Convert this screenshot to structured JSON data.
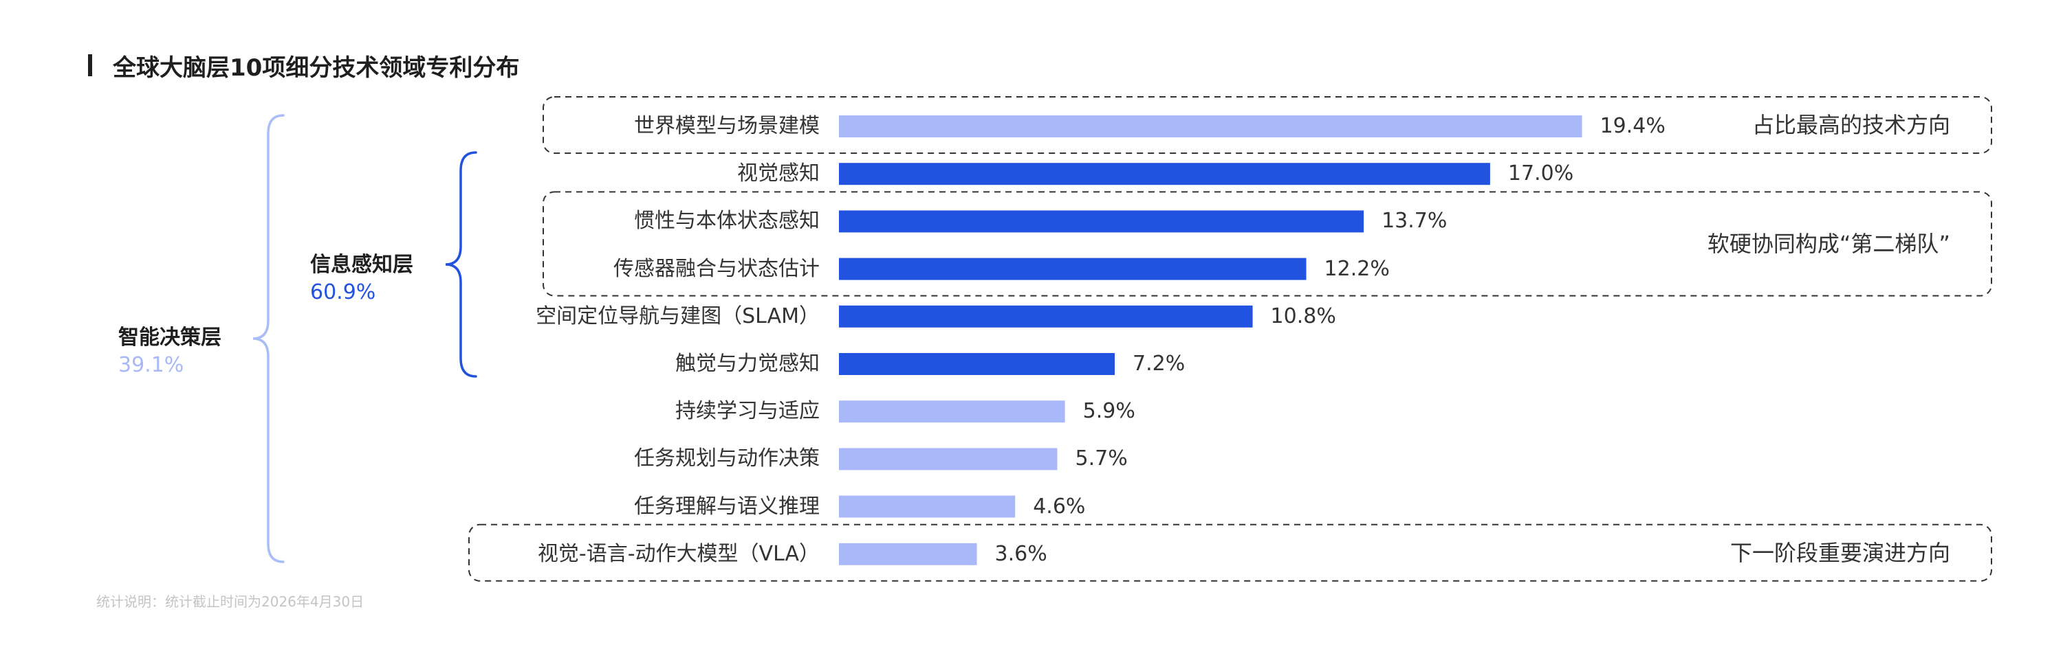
{
  "title": "全球大脑层10项细分技术领域专利分布",
  "footnote": "统计说明：统计截止时间为2026年4月30日",
  "colors": {
    "perception": "#2152e0",
    "decision": "#a9b8f8",
    "brace_outer": "#a9bdf6",
    "brace_inner": "#2152e0",
    "dashed_box": "#333333"
  },
  "groups": {
    "decision": {
      "label": "智能决策层",
      "value": "39.1%"
    },
    "perception": {
      "label": "信息感知层",
      "value": "60.9%"
    }
  },
  "chart_data": {
    "type": "bar",
    "orientation": "horizontal",
    "title": "全球大脑层10项细分技术领域专利分布",
    "categories": [
      "世界模型与场景建模",
      "视觉感知",
      "惯性与本体状态感知",
      "传感器融合与状态估计",
      "空间定位导航与建图（SLAM）",
      "触觉与力觉感知",
      "持续学习与适应",
      "任务规划与动作决策",
      "任务理解与语义推理",
      "视觉-语言-动作大模型（VLA）"
    ],
    "values": [
      19.4,
      17.0,
      13.7,
      12.2,
      10.8,
      7.2,
      5.9,
      5.7,
      4.6,
      3.6
    ],
    "value_labels": [
      "19.4%",
      "17.0%",
      "13.7%",
      "12.2%",
      "10.8%",
      "7.2%",
      "5.9%",
      "5.7%",
      "4.6%",
      "3.6%"
    ],
    "bar_group": [
      "decision",
      "perception",
      "perception",
      "perception",
      "perception",
      "perception",
      "decision",
      "decision",
      "decision",
      "decision"
    ],
    "xlim": [
      0,
      20
    ],
    "grid": false,
    "annotations": [
      {
        "text": "占比最高的技术方向",
        "rows": [
          0,
          0
        ]
      },
      {
        "text": "软硬协同构成“第二梯队”",
        "rows": [
          2,
          3
        ]
      },
      {
        "text": "下一阶段重要演进方向",
        "rows": [
          9,
          9
        ]
      }
    ]
  }
}
